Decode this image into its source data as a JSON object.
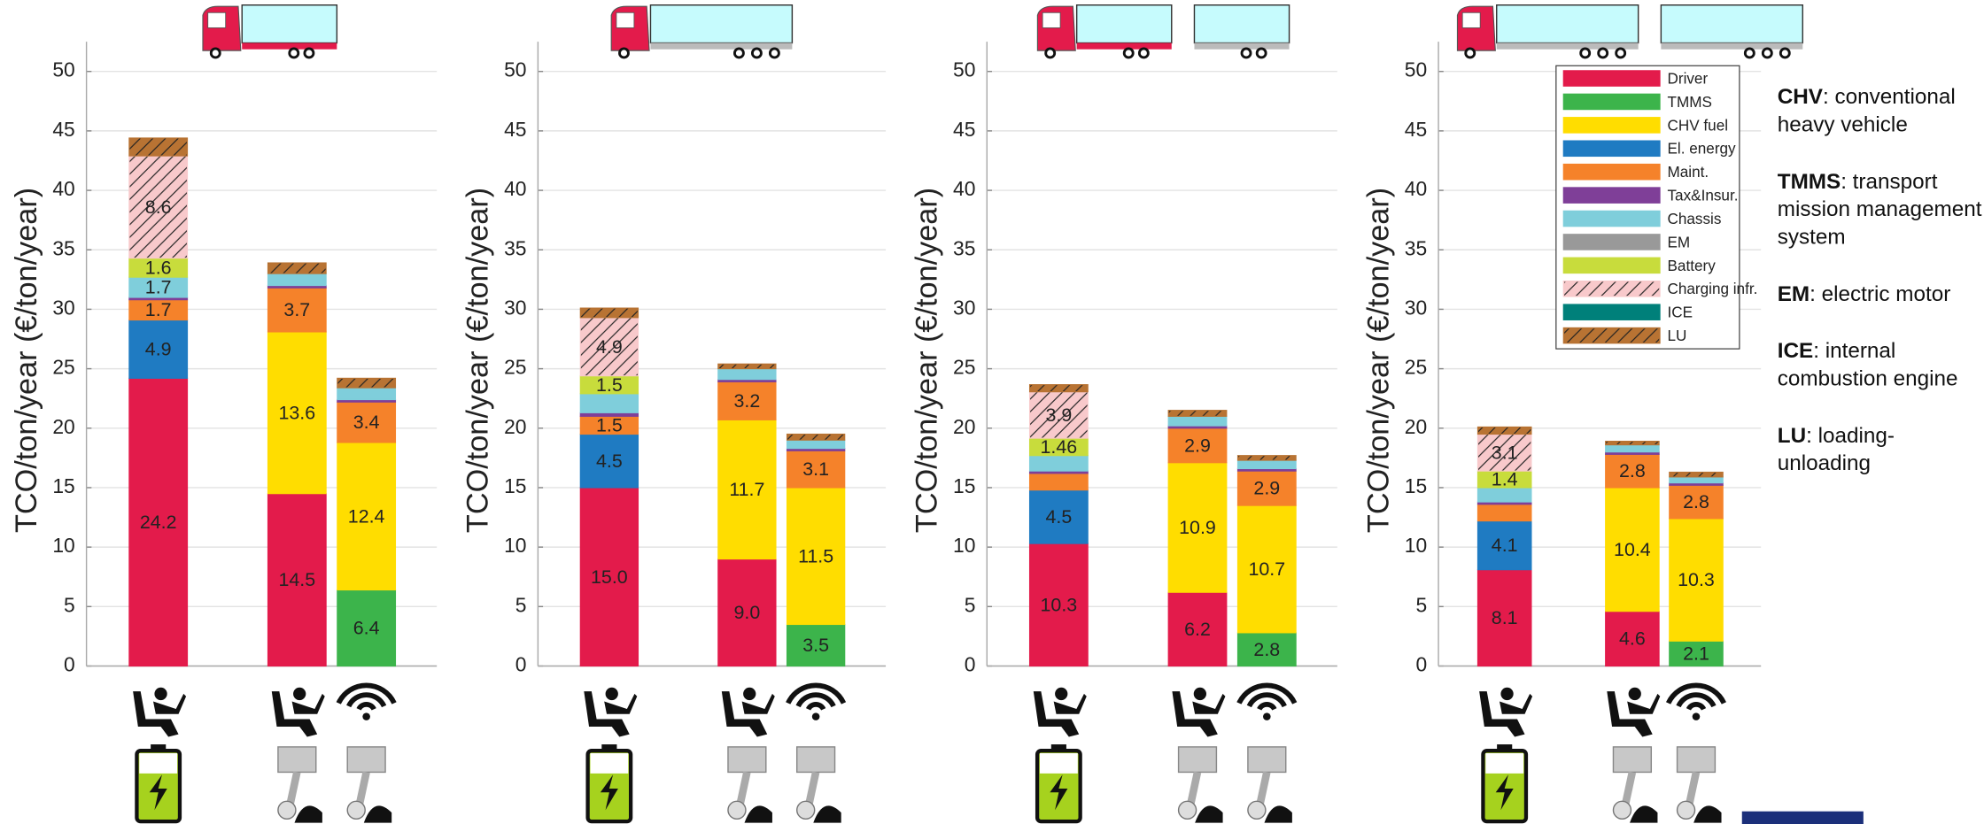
{
  "chart_data": [
    {
      "type": "bar",
      "stacked": true,
      "ylabel": "TCO/ton/year (€/ton/year)",
      "ylim": [
        0,
        52.5
      ],
      "yticks": [
        0,
        5,
        10,
        15,
        20,
        25,
        30,
        35,
        40,
        45,
        50
      ],
      "grid": true,
      "categories": [
        null,
        null,
        null,
        null
      ],
      "series": [
        {
          "color": "#e31b4b",
          "values": [
            24.2,
            null,
            14.5,
            null
          ],
          "value_labels": [
            "24.2",
            null,
            "14.5",
            null
          ]
        },
        {
          "color": "#3cb44b",
          "values": [
            null,
            0,
            null,
            6.4
          ],
          "value_labels": [
            null,
            null,
            null,
            "6.4"
          ]
        },
        {
          "color": "#ffdd00",
          "values": [
            null,
            null,
            13.6,
            12.4
          ],
          "value_labels": [
            null,
            null,
            "13.6",
            "12.4"
          ]
        },
        {
          "color": "#1f7bc2",
          "values": [
            4.9,
            null,
            null,
            null
          ],
          "value_labels": [
            "4.9",
            null,
            null,
            null
          ]
        },
        {
          "color": "#f5822a",
          "values": [
            1.7,
            null,
            3.7,
            3.4
          ],
          "value_labels": [
            "1.7",
            null,
            "3.7",
            "3.4"
          ]
        },
        {
          "color": "#7f3f98",
          "values": [
            0.2,
            null,
            0.2,
            0.2
          ]
        },
        {
          "color": "#7fcedb",
          "values": [
            1.7,
            null,
            1.0,
            1.0
          ],
          "value_labels": [
            "1.7",
            null,
            null,
            null
          ]
        },
        {
          "color": "#999999",
          "values": [
            null,
            null,
            null,
            null
          ]
        },
        {
          "color": "#c8dc3c",
          "values": [
            1.6,
            null,
            null,
            null
          ],
          "value_labels": [
            "1.6",
            null,
            null,
            null
          ]
        },
        {
          "color": "#f8c9cb",
          "hatch": "/",
          "values": [
            8.6,
            null,
            null,
            null
          ],
          "value_labels": [
            "8.6",
            null,
            null,
            null
          ]
        },
        {
          "color": "#00807a",
          "values": [
            null,
            null,
            null,
            null
          ]
        },
        {
          "color": "#b87333",
          "hatch": "/",
          "values": [
            1.5,
            null,
            0.9,
            0.8
          ]
        }
      ]
    },
    {
      "type": "bar",
      "stacked": true,
      "ylabel": "TCO/ton/year (€/ton/year)",
      "ylim": [
        0,
        52.5
      ],
      "yticks": [
        0,
        5,
        10,
        15,
        20,
        25,
        30,
        35,
        40,
        45,
        50
      ],
      "grid": true,
      "categories": [
        null,
        null,
        null,
        null
      ],
      "series": [
        {
          "color": "#e31b4b",
          "values": [
            15.0,
            null,
            9.0,
            null
          ],
          "value_labels": [
            "15.0",
            null,
            "9.0",
            null
          ]
        },
        {
          "color": "#3cb44b",
          "values": [
            null,
            0,
            null,
            3.5
          ],
          "value_labels": [
            null,
            null,
            null,
            "3.5"
          ]
        },
        {
          "color": "#ffdd00",
          "values": [
            null,
            null,
            11.7,
            11.5
          ],
          "value_labels": [
            null,
            null,
            "11.7",
            "11.5"
          ]
        },
        {
          "color": "#1f7bc2",
          "values": [
            4.5,
            null,
            null,
            null
          ],
          "value_labels": [
            "4.5",
            null,
            null,
            null
          ]
        },
        {
          "color": "#f5822a",
          "values": [
            1.5,
            null,
            3.2,
            3.1
          ],
          "value_labels": [
            "1.5",
            null,
            "3.2",
            "3.1"
          ]
        },
        {
          "color": "#7f3f98",
          "values": [
            0.3,
            null,
            0.2,
            0.2
          ]
        },
        {
          "color": "#7fcedb",
          "values": [
            1.6,
            null,
            0.9,
            0.7
          ]
        },
        {
          "color": "#999999",
          "values": [
            null,
            null,
            null,
            null
          ]
        },
        {
          "color": "#c8dc3c",
          "values": [
            1.5,
            null,
            null,
            null
          ],
          "value_labels": [
            "1.5",
            null,
            null,
            null
          ]
        },
        {
          "color": "#f8c9cb",
          "hatch": "/",
          "values": [
            4.9,
            null,
            null,
            null
          ],
          "value_labels": [
            "4.9",
            null,
            null,
            null
          ]
        },
        {
          "color": "#00807a",
          "values": [
            null,
            null,
            null,
            null
          ]
        },
        {
          "color": "#b87333",
          "hatch": "/",
          "values": [
            0.8,
            null,
            0.4,
            0.5
          ]
        }
      ]
    },
    {
      "type": "bar",
      "stacked": true,
      "ylabel": "TCO/ton/year (€/ton/year)",
      "ylim": [
        0,
        52.5
      ],
      "yticks": [
        0,
        5,
        10,
        15,
        20,
        25,
        30,
        35,
        40,
        45,
        50
      ],
      "grid": true,
      "categories": [
        null,
        null,
        null,
        null
      ],
      "series": [
        {
          "color": "#e31b4b",
          "values": [
            10.3,
            null,
            6.2,
            null
          ],
          "value_labels": [
            "10.3",
            null,
            "6.2",
            null
          ]
        },
        {
          "color": "#3cb44b",
          "values": [
            null,
            0,
            null,
            2.8
          ],
          "value_labels": [
            null,
            null,
            null,
            "2.8"
          ]
        },
        {
          "color": "#ffdd00",
          "values": [
            null,
            null,
            10.9,
            10.7
          ],
          "value_labels": [
            null,
            null,
            "10.9",
            "10.7"
          ]
        },
        {
          "color": "#1f7bc2",
          "values": [
            4.5,
            null,
            null,
            null
          ],
          "value_labels": [
            "4.5",
            null,
            null,
            null
          ]
        },
        {
          "color": "#f5822a",
          "values": [
            1.4,
            null,
            2.9,
            2.9
          ],
          "value_labels": [
            null,
            null,
            "2.9",
            "2.9"
          ]
        },
        {
          "color": "#7f3f98",
          "values": [
            0.2,
            null,
            0.2,
            0.2
          ]
        },
        {
          "color": "#7fcedb",
          "values": [
            1.3,
            null,
            0.8,
            0.7
          ]
        },
        {
          "color": "#999999",
          "values": [
            null,
            null,
            null,
            null
          ]
        },
        {
          "color": "#c8dc3c",
          "values": [
            1.46,
            null,
            null,
            null
          ],
          "value_labels": [
            "1.46",
            null,
            null,
            null
          ]
        },
        {
          "color": "#f8c9cb",
          "hatch": "/",
          "values": [
            3.9,
            null,
            null,
            null
          ],
          "value_labels": [
            "3.9",
            null,
            null,
            null
          ]
        },
        {
          "color": "#00807a",
          "values": [
            null,
            null,
            null,
            null
          ]
        },
        {
          "color": "#b87333",
          "hatch": "/",
          "values": [
            0.6,
            null,
            0.5,
            0.4
          ]
        }
      ]
    },
    {
      "type": "bar",
      "stacked": true,
      "ylabel": "TCO/ton/year (€/ton/year)",
      "ylim": [
        0,
        52.5
      ],
      "yticks": [
        0,
        5,
        10,
        15,
        20,
        25,
        30,
        35,
        40,
        45,
        50
      ],
      "grid": true,
      "legend": "upper right",
      "categories": [
        null,
        null,
        null,
        null
      ],
      "series": [
        {
          "name": "Driver",
          "color": "#e31b4b",
          "values": [
            8.1,
            null,
            4.6,
            null
          ],
          "value_labels": [
            "8.1",
            null,
            "4.6",
            null
          ]
        },
        {
          "name": "TMMS",
          "color": "#3cb44b",
          "values": [
            null,
            0,
            null,
            2.1
          ],
          "value_labels": [
            null,
            null,
            null,
            "2.1"
          ]
        },
        {
          "name": "CHV fuel",
          "color": "#ffdd00",
          "values": [
            null,
            null,
            10.4,
            10.3
          ],
          "value_labels": [
            null,
            null,
            "10.4",
            "10.3"
          ]
        },
        {
          "name": "El. energy",
          "color": "#1f7bc2",
          "values": [
            4.1,
            null,
            null,
            null
          ],
          "value_labels": [
            "4.1",
            null,
            null,
            null
          ]
        },
        {
          "name": "Maint.",
          "color": "#f5822a",
          "values": [
            1.4,
            null,
            2.8,
            2.8
          ],
          "value_labels": [
            null,
            null,
            "2.8",
            "2.8"
          ]
        },
        {
          "name": "Tax&Insur.",
          "color": "#7f3f98",
          "values": [
            0.2,
            null,
            0.2,
            0.2
          ]
        },
        {
          "name": "Chassis",
          "color": "#7fcedb",
          "values": [
            1.2,
            null,
            0.6,
            0.5
          ]
        },
        {
          "name": "EM",
          "color": "#999999",
          "values": [
            null,
            null,
            null,
            null
          ]
        },
        {
          "name": "Battery",
          "color": "#c8dc3c",
          "values": [
            1.4,
            null,
            null,
            null
          ],
          "value_labels": [
            "1.4",
            null,
            null,
            null
          ]
        },
        {
          "name": "Charging infr.",
          "color": "#f8c9cb",
          "hatch": "/",
          "values": [
            3.1,
            null,
            null,
            null
          ],
          "value_labels": [
            "3.1",
            null,
            null,
            null
          ]
        },
        {
          "name": "ICE",
          "color": "#00807a",
          "values": [
            null,
            null,
            null,
            null
          ]
        },
        {
          "name": "LU",
          "color": "#b87333",
          "hatch": "/",
          "values": [
            0.6,
            null,
            0.3,
            0.4
          ]
        }
      ],
      "annotations": [
        {
          "term": "CHV",
          "text": ": conventional heavy vehicle"
        },
        {
          "term": "TMMS",
          "text": ": transport mission management system"
        },
        {
          "term": "EM",
          "text": ": electric motor"
        },
        {
          "term": "ICE",
          "text": ": internal combustion engine"
        },
        {
          "term": "LU",
          "text": ": loading-unloading"
        }
      ]
    }
  ]
}
